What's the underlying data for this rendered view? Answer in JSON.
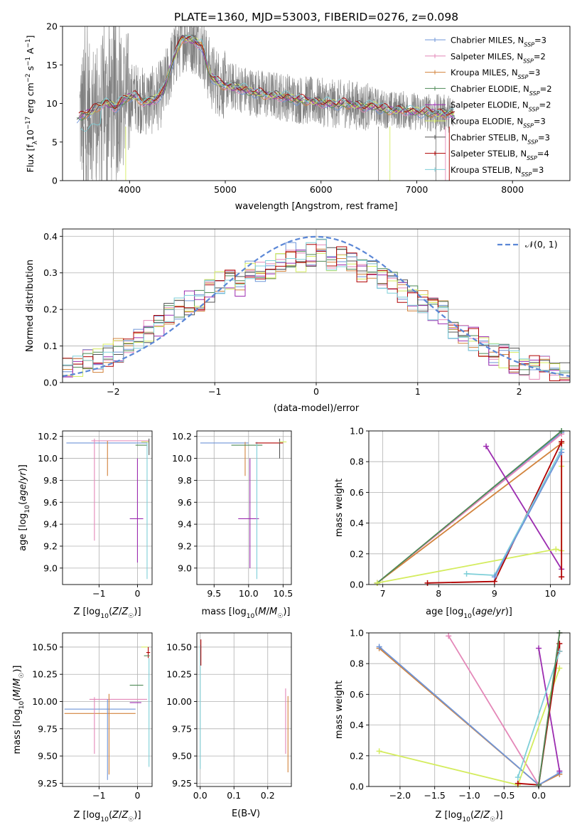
{
  "figure_title": "PLATE=1360, MJD=53003, FIBERID=0276, z=0.098",
  "models": [
    {
      "name": "Chabrier MILES",
      "nssp": "3",
      "color": "#6f95d8"
    },
    {
      "name": "Salpeter MILES",
      "nssp": "2",
      "color": "#e487b8"
    },
    {
      "name": "Kroupa MILES",
      "nssp": "3",
      "color": "#d2833c"
    },
    {
      "name": "Chabrier ELODIE",
      "nssp": "2",
      "color": "#4e8a56"
    },
    {
      "name": "Salpeter ELODIE",
      "nssp": "2",
      "color": "#9c2cb0"
    },
    {
      "name": "Kroupa ELODIE",
      "nssp": "3",
      "color": "#d4ec5e"
    },
    {
      "name": "Chabrier STELIB",
      "nssp": "3",
      "color": "#555555"
    },
    {
      "name": "Salpeter STELIB",
      "nssp": "4",
      "color": "#b00000"
    },
    {
      "name": "Kroupa STELIB",
      "nssp": "3",
      "color": "#7ecfd8"
    }
  ],
  "chart_data": [
    {
      "id": "spectrum",
      "type": "line",
      "title": "PLATE=1360, MJD=53003, FIBERID=0276, z=0.098",
      "xlabel": "wavelength [Angstrom, rest frame]",
      "ylabel": "Flux [f_λ 10^-17 erg cm^-2 s^-1 A^-1]",
      "xlim": [
        3300,
        8600
      ],
      "ylim": [
        0,
        20
      ],
      "xticks": [
        4000,
        5000,
        6000,
        7000,
        8000
      ],
      "yticks": [
        0,
        5,
        10,
        15,
        20
      ],
      "grid": false,
      "legend_position": "top-right",
      "data_series": {
        "name": "data",
        "color": "#808080",
        "x_range": [
          3480,
          7380
        ]
      },
      "model_continuum": {
        "x": [
          3450,
          3550,
          3650,
          3750,
          3850,
          3950,
          4050,
          4150,
          4250,
          4350,
          4450,
          4550,
          4650,
          4750,
          4850,
          4950,
          5050,
          5150,
          5250,
          5350,
          5450,
          5550,
          5650,
          5750,
          5850,
          5950,
          6050,
          6150,
          6250,
          6350,
          6450,
          6550,
          6650,
          6750,
          6850,
          6950,
          7050,
          7150,
          7250,
          7350,
          7450,
          7550,
          7650,
          7750,
          7850,
          7950
        ],
        "y": [
          8.2,
          8.6,
          9.4,
          10.2,
          9.5,
          10.6,
          11.0,
          10.2,
          10.4,
          11.5,
          15.5,
          18.5,
          18.3,
          17.6,
          13.5,
          12.5,
          12.2,
          12.0,
          11.6,
          11.3,
          11.1,
          11.0,
          10.8,
          10.5,
          10.4,
          10.2,
          10.1,
          9.9,
          10.0,
          9.8,
          9.6,
          9.7,
          9.3,
          9.1,
          9.2,
          9.0,
          8.9,
          8.8,
          8.7,
          8.7,
          8.4,
          8.6,
          8.3,
          8.2,
          8.3,
          8.0
        ]
      }
    },
    {
      "id": "residuals",
      "type": "line",
      "xlabel": "(data-model)/error",
      "ylabel": "Normed distribution",
      "xlim": [
        -2.5,
        2.5
      ],
      "ylim": [
        0,
        0.42
      ],
      "xticks": [
        -2,
        -1,
        0,
        1,
        2
      ],
      "yticks": [
        0.0,
        0.1,
        0.2,
        0.3,
        0.4
      ],
      "grid": true,
      "legend_position": "top-right",
      "reference_curve": {
        "label": "𝒩(0, 1)",
        "mean": 0,
        "sigma": 1,
        "color": "#5b87d6"
      },
      "bin_width": 0.1,
      "bin_centers": [
        -2.45,
        -2.35,
        -2.25,
        -2.15,
        -2.05,
        -1.95,
        -1.85,
        -1.75,
        -1.65,
        -1.55,
        -1.45,
        -1.35,
        -1.25,
        -1.15,
        -1.05,
        -0.95,
        -0.85,
        -0.75,
        -0.65,
        -0.55,
        -0.45,
        -0.35,
        -0.25,
        -0.15,
        -0.05,
        0.05,
        0.15,
        0.25,
        0.35,
        0.45,
        0.55,
        0.65,
        0.75,
        0.85,
        0.95,
        1.05,
        1.15,
        1.25,
        1.35,
        1.45,
        1.55,
        1.65,
        1.75,
        1.85,
        1.95,
        2.05,
        2.15,
        2.25,
        2.35,
        2.45
      ],
      "hist_values": [
        0.04,
        0.05,
        0.07,
        0.06,
        0.07,
        0.09,
        0.1,
        0.12,
        0.14,
        0.16,
        0.19,
        0.2,
        0.22,
        0.22,
        0.25,
        0.27,
        0.28,
        0.27,
        0.3,
        0.31,
        0.3,
        0.33,
        0.35,
        0.33,
        0.35,
        0.36,
        0.34,
        0.34,
        0.33,
        0.31,
        0.32,
        0.29,
        0.27,
        0.25,
        0.23,
        0.22,
        0.2,
        0.19,
        0.15,
        0.13,
        0.12,
        0.1,
        0.08,
        0.07,
        0.06,
        0.05,
        0.04,
        0.04,
        0.03,
        0.03
      ]
    },
    {
      "id": "age-vs-Z",
      "type": "scatter",
      "xlabel": "Z [log10(Z/Z☉)]",
      "ylabel": "age  [log10(age/yr)]",
      "xlim": [
        -1.95,
        0.38
      ],
      "ylim": [
        8.85,
        10.25
      ],
      "xticks": [
        -1,
        0
      ],
      "yticks": [
        9.0,
        9.2,
        9.4,
        9.6,
        9.8,
        10.0,
        10.2
      ],
      "grid": true,
      "errorbars": [
        {
          "model": 0,
          "x": -1.85,
          "xerr": [
            0,
            2.1
          ],
          "y": 10.14,
          "yerr": [
            0,
            0
          ]
        },
        {
          "model": 1,
          "x": -0.8,
          "xerr": [
            0.4,
            1.1
          ],
          "y": 10.16,
          "yerr": [
            0,
            0
          ]
        },
        {
          "model": 1,
          "x": -1.12,
          "xerr": [
            0,
            0
          ],
          "y": 9.7,
          "yerr": [
            0.45,
            0.48
          ]
        },
        {
          "model": 2,
          "x": -0.78,
          "xerr": [
            0,
            0
          ],
          "y": 10.0,
          "yerr": [
            0.16,
            0.16
          ]
        },
        {
          "model": 4,
          "x": -0.05,
          "xerr": [
            0.15,
            0.2
          ],
          "y": 9.45,
          "yerr": [
            0,
            0
          ]
        },
        {
          "model": 4,
          "x": 0.0,
          "xerr": [
            0,
            0
          ],
          "y": 9.5,
          "yerr": [
            0.45,
            0.5
          ]
        },
        {
          "model": 3,
          "x": 0.1,
          "xerr": [
            0.15,
            0.15
          ],
          "y": 10.12,
          "yerr": [
            0,
            0
          ]
        },
        {
          "model": 8,
          "x": 0.25,
          "xerr": [
            0,
            0
          ],
          "y": 9.55,
          "yerr": [
            0.65,
            0.6
          ]
        },
        {
          "model": 5,
          "x": 0.2,
          "xerr": [
            0.1,
            0.1
          ],
          "y": 10.15,
          "yerr": [
            0,
            0
          ]
        },
        {
          "model": 6,
          "x": 0.3,
          "xerr": [
            0,
            0
          ],
          "y": 10.08,
          "yerr": [
            0.05,
            0.1
          ]
        }
      ]
    },
    {
      "id": "age-vs-mass",
      "type": "scatter",
      "xlabel": "mass [log10(M/M☉)]",
      "ylabel": "",
      "xlim": [
        9.25,
        10.62
      ],
      "ylim": [
        8.85,
        10.25
      ],
      "xticks": [
        9.5,
        10.0,
        10.5
      ],
      "yticks": [
        9.0,
        9.2,
        9.4,
        9.6,
        9.8,
        10.0,
        10.2
      ],
      "grid": true,
      "errorbars": [
        {
          "model": 0,
          "x": 9.9,
          "xerr": [
            0.6,
            0.1
          ],
          "y": 10.14,
          "yerr": [
            0,
            0
          ]
        },
        {
          "model": 2,
          "x": 9.95,
          "xerr": [
            0,
            0
          ],
          "y": 10.0,
          "yerr": [
            0.16,
            0.15
          ]
        },
        {
          "model": 4,
          "x": 10.0,
          "xerr": [
            0.15,
            0.15
          ],
          "y": 9.45,
          "yerr": [
            0,
            0
          ]
        },
        {
          "model": 4,
          "x": 10.02,
          "xerr": [
            0,
            0
          ],
          "y": 9.5,
          "yerr": [
            0.5,
            0.5
          ]
        },
        {
          "model": 3,
          "x": 10.1,
          "xerr": [
            0.35,
            0.1
          ],
          "y": 10.12,
          "yerr": [
            0,
            0
          ]
        },
        {
          "model": 8,
          "x": 10.12,
          "xerr": [
            0,
            0
          ],
          "y": 9.55,
          "yerr": [
            0.65,
            0.6
          ]
        },
        {
          "model": 7,
          "x": 10.3,
          "xerr": [
            0.2,
            0.2
          ],
          "y": 10.14,
          "yerr": [
            0,
            0
          ]
        },
        {
          "model": 6,
          "x": 10.45,
          "xerr": [
            0,
            0
          ],
          "y": 10.08,
          "yerr": [
            0.08,
            0.1
          ]
        },
        {
          "model": 5,
          "x": 10.5,
          "xerr": [
            0.05,
            0.05
          ],
          "y": 10.15,
          "yerr": [
            0,
            0
          ]
        }
      ]
    },
    {
      "id": "weight-vs-age",
      "type": "line",
      "xlabel": "age  [log10(age/yr)]",
      "ylabel": "mass weight",
      "xlim": [
        6.75,
        10.35
      ],
      "ylim": [
        0,
        1
      ],
      "xticks": [
        7,
        8,
        9,
        10
      ],
      "yticks": [
        0.0,
        0.2,
        0.4,
        0.6,
        0.8,
        1.0
      ],
      "grid": true,
      "series": [
        {
          "model": 0,
          "x": [
            6.9,
            10.2
          ],
          "y": [
            0.01,
            0.99
          ]
        },
        {
          "model": 1,
          "x": [
            6.9,
            10.2
          ],
          "y": [
            0.01,
            0.98
          ]
        },
        {
          "model": 2,
          "x": [
            6.9,
            10.2
          ],
          "y": [
            0.01,
            0.92
          ]
        },
        {
          "model": 3,
          "x": [
            6.9,
            10.2
          ],
          "y": [
            0.01,
            1.0
          ]
        },
        {
          "model": 4,
          "x": [
            8.85,
            10.2
          ],
          "y": [
            0.9,
            0.1
          ]
        },
        {
          "model": 5,
          "x": [
            6.9,
            10.1,
            10.2,
            10.2
          ],
          "y": [
            0.01,
            0.23,
            0.22,
            0.77
          ]
        },
        {
          "model": 7,
          "x": [
            7.8,
            9.0,
            10.2,
            10.2
          ],
          "y": [
            0.01,
            0.02,
            0.93,
            0.05
          ]
        },
        {
          "model": 8,
          "x": [
            8.5,
            9.0,
            10.2
          ],
          "y": [
            0.07,
            0.06,
            0.88
          ]
        },
        {
          "model": 0,
          "x": [
            9.0,
            10.2
          ],
          "y": [
            0.05,
            0.86
          ]
        }
      ]
    },
    {
      "id": "mass-vs-Z",
      "type": "scatter",
      "xlabel": "Z [log10(Z/Z☉)]",
      "ylabel": "mass [log10(M/M☉)]",
      "xlim": [
        -1.95,
        0.38
      ],
      "ylim": [
        9.22,
        10.63
      ],
      "xticks": [
        -1,
        0
      ],
      "yticks": [
        9.25,
        9.5,
        9.75,
        10.0,
        10.25,
        10.5
      ],
      "grid": true,
      "errorbars": [
        {
          "model": 0,
          "x": -0.7,
          "xerr": [
            1.2,
            0.65
          ],
          "y": 9.93,
          "yerr": [
            0,
            0
          ]
        },
        {
          "model": 2,
          "x": -0.7,
          "xerr": [
            1.2,
            0.65
          ],
          "y": 9.89,
          "yerr": [
            0,
            0
          ]
        },
        {
          "model": 1,
          "x": -0.85,
          "xerr": [
            0.4,
            1.1
          ],
          "y": 10.02,
          "yerr": [
            0,
            0
          ]
        },
        {
          "model": 1,
          "x": -1.12,
          "xerr": [
            0,
            0
          ],
          "y": 9.78,
          "yerr": [
            0.26,
            0.26
          ]
        },
        {
          "model": 0,
          "x": -0.78,
          "xerr": [
            0,
            0
          ],
          "y": 9.65,
          "yerr": [
            0.37,
            0.37
          ]
        },
        {
          "model": 2,
          "x": -0.74,
          "xerr": [
            0,
            0
          ],
          "y": 9.7,
          "yerr": [
            0.37,
            0.37
          ]
        },
        {
          "model": 4,
          "x": -0.1,
          "xerr": [
            0.1,
            0.2
          ],
          "y": 9.99,
          "yerr": [
            0,
            0
          ]
        },
        {
          "model": 3,
          "x": 0.05,
          "xerr": [
            0.25,
            0.1
          ],
          "y": 10.15,
          "yerr": [
            0,
            0
          ]
        },
        {
          "model": 8,
          "x": 0.3,
          "xerr": [
            0,
            0
          ],
          "y": 9.9,
          "yerr": [
            0.5,
            0.5
          ]
        },
        {
          "model": 5,
          "x": 0.2,
          "xerr": [
            0.1,
            0.08
          ],
          "y": 10.5,
          "yerr": [
            0,
            0
          ]
        },
        {
          "model": 7,
          "x": 0.28,
          "xerr": [
            0.05,
            0.05
          ],
          "y": 10.45,
          "yerr": [
            0.05,
            0.05
          ]
        },
        {
          "model": 3,
          "x": 0.22,
          "xerr": [
            0.05,
            0.1
          ],
          "y": 10.42,
          "yerr": [
            0,
            0
          ]
        }
      ]
    },
    {
      "id": "mass-vs-EBV",
      "type": "scatter",
      "xlabel": "E(B-V)",
      "ylabel": "",
      "xlim": [
        -0.01,
        0.27
      ],
      "ylim": [
        9.22,
        10.63
      ],
      "xticks": [
        0.0,
        0.1,
        0.2
      ],
      "yticks": [
        9.25,
        9.5,
        9.75,
        10.0,
        10.25,
        10.5
      ],
      "grid": true,
      "errorbars": [
        {
          "model": 8,
          "x": 0.0,
          "xerr": [
            0,
            0
          ],
          "y": 9.95,
          "yerr": [
            0.57,
            0.57
          ]
        },
        {
          "model": 7,
          "x": 0.002,
          "xerr": [
            0,
            0
          ],
          "y": 10.45,
          "yerr": [
            0.12,
            0.12
          ]
        },
        {
          "model": 1,
          "x": 0.253,
          "xerr": [
            0,
            0
          ],
          "y": 9.8,
          "yerr": [
            0.28,
            0.32
          ]
        },
        {
          "model": 2,
          "x": 0.26,
          "xerr": [
            0,
            0
          ],
          "y": 9.7,
          "yerr": [
            0.35,
            0.35
          ]
        }
      ]
    },
    {
      "id": "weight-vs-Z",
      "type": "line",
      "xlabel": "Z [log10(Z/Z☉)]",
      "ylabel": "mass weight",
      "xlim": [
        -2.45,
        0.45
      ],
      "ylim": [
        0,
        1
      ],
      "xticks": [
        -2.0,
        -1.5,
        -1.0,
        -0.5,
        0.0
      ],
      "yticks": [
        0.0,
        0.2,
        0.4,
        0.6,
        0.8,
        1.0
      ],
      "grid": true,
      "series": [
        {
          "model": 2,
          "x": [
            -2.3,
            0.0,
            0.3
          ],
          "y": [
            0.9,
            0.01,
            0.08
          ]
        },
        {
          "model": 0,
          "x": [
            -2.3,
            0.0,
            0.3
          ],
          "y": [
            0.91,
            0.01,
            0.09
          ]
        },
        {
          "model": 1,
          "x": [
            -1.3,
            0.0,
            0.3
          ],
          "y": [
            0.98,
            0.01,
            1.0
          ]
        },
        {
          "model": 5,
          "x": [
            -2.3,
            -0.3,
            0.3
          ],
          "y": [
            0.23,
            0.01,
            0.77
          ]
        },
        {
          "model": 4,
          "x": [
            0.0,
            0.3
          ],
          "y": [
            0.9,
            0.1
          ]
        },
        {
          "model": 7,
          "x": [
            -0.3,
            0.0,
            0.3,
            0.3
          ],
          "y": [
            0.02,
            0.01,
            0.93,
            0.88
          ]
        },
        {
          "model": 8,
          "x": [
            -0.3,
            0.3
          ],
          "y": [
            0.06,
            0.88
          ]
        },
        {
          "model": 3,
          "x": [
            0.0,
            0.3
          ],
          "y": [
            0.01,
            1.0
          ]
        }
      ]
    }
  ]
}
